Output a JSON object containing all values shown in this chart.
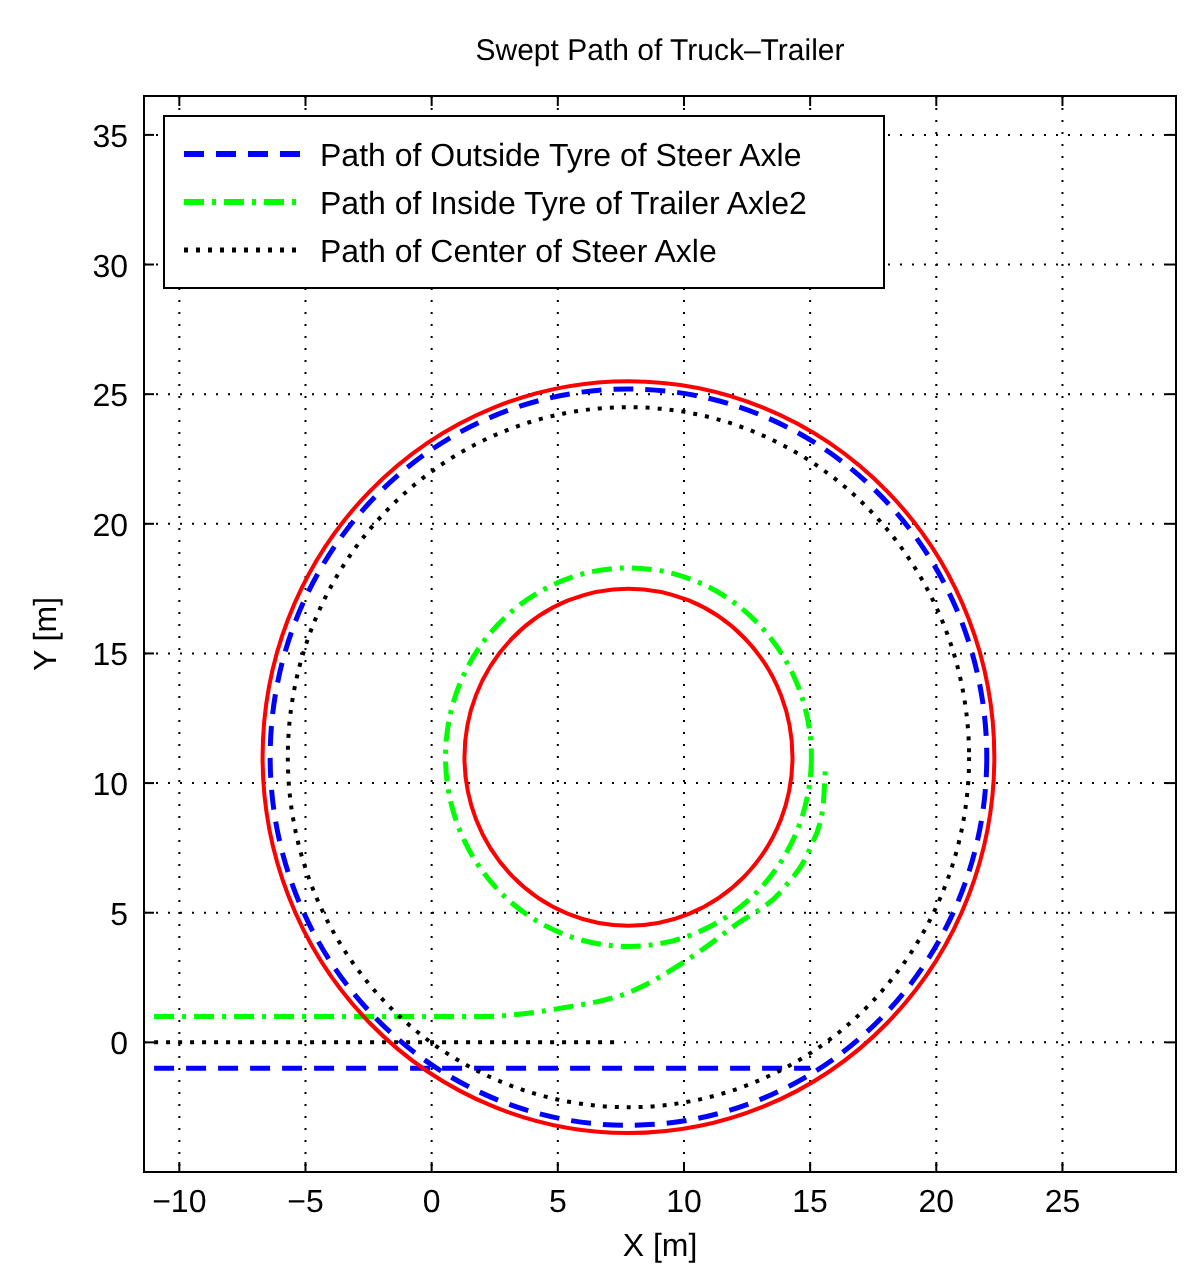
{
  "chart_data": {
    "type": "line",
    "title": "Swept Path of Truck–Trailer",
    "xlabel": "X [m]",
    "ylabel": "Y [m]",
    "xlim": [
      -11.4,
      29.5
    ],
    "ylim": [
      -5,
      36.5
    ],
    "xticks": [
      -10,
      -5,
      0,
      5,
      10,
      15,
      20,
      25
    ],
    "yticks": [
      0,
      5,
      10,
      15,
      20,
      25,
      30,
      35
    ],
    "grid": true,
    "legend": "top left",
    "series": [
      {
        "name": "Path of Outside Tyre of Steer Axle",
        "color": "#0000ff",
        "line_style": "dashed",
        "x": [
          -11,
          15
        ],
        "values": [
          -1,
          -1
        ]
      },
      {
        "name": "Path of Inside Tyre of Trailer Axle2",
        "color": "#00ff00",
        "line_style": "dashdot",
        "x": [
          -11,
          2,
          5,
          8,
          10,
          12,
          14,
          15,
          15.5,
          15.6
        ],
        "values": [
          1,
          1,
          1.3,
          2,
          3.1,
          4.5,
          6,
          7.5,
          9,
          10.5
        ]
      },
      {
        "name": "Path of Center of Steer Axle",
        "color": "#000000",
        "line_style": "dotted",
        "x": [
          -11,
          7.5
        ],
        "values": [
          0,
          0
        ]
      }
    ]
  }
}
